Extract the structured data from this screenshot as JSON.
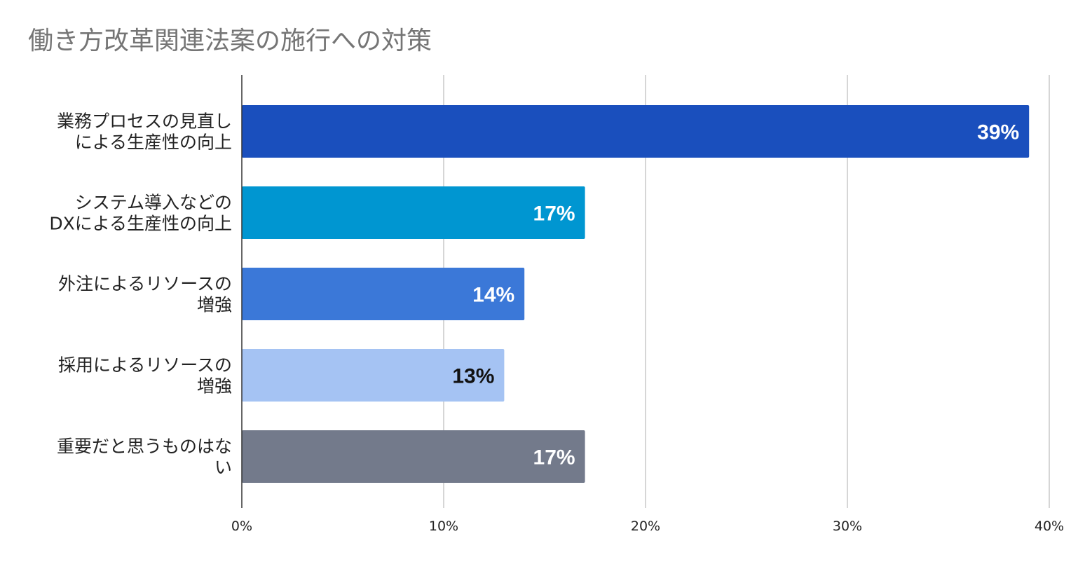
{
  "chart_data": {
    "type": "bar",
    "orientation": "horizontal",
    "title": "働き方改革関連法案の施行への対策",
    "categories": [
      [
        "業務プロセスの見直し",
        "による生産性の向上"
      ],
      [
        "システム導入などの",
        "DXによる生産性の向上"
      ],
      [
        "外注によるリソースの",
        "増強"
      ],
      [
        "採用によるリソースの",
        "増強"
      ],
      [
        "重要だと思うものはな",
        "い"
      ]
    ],
    "values": [
      39,
      17,
      14,
      13,
      17
    ],
    "data_labels": [
      "39%",
      "17%",
      "14%",
      "13%",
      "17%"
    ],
    "colors": [
      "#1a4fbd",
      "#0096d1",
      "#3b78d8",
      "#a5c3f3",
      "#737a8b"
    ],
    "label_colors": [
      "#ffffff",
      "#ffffff",
      "#ffffff",
      "#111111",
      "#ffffff"
    ],
    "xlim": [
      0,
      40
    ],
    "xticks": [
      0,
      10,
      20,
      30,
      40
    ],
    "xtick_labels": [
      "0%",
      "10%",
      "20%",
      "30%",
      "40%"
    ],
    "grid": true,
    "legend": "none"
  }
}
